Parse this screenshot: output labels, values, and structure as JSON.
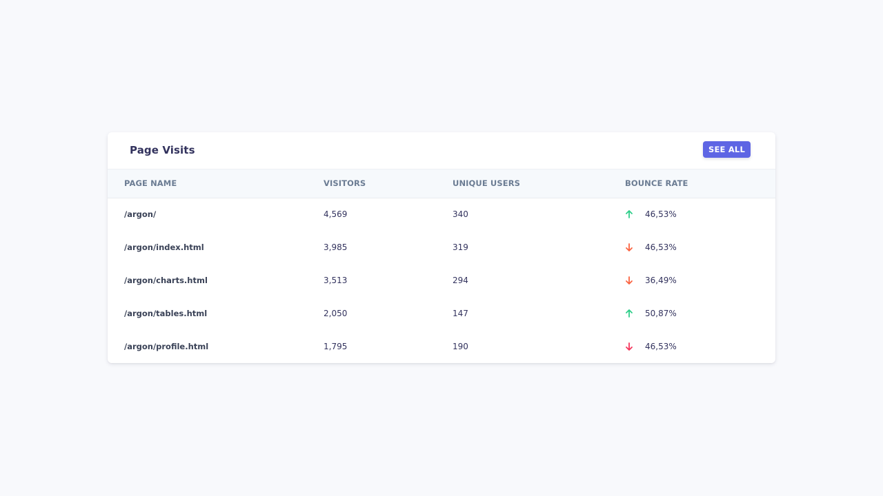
{
  "card": {
    "title": "Page Visits",
    "see_all_label": "SEE ALL"
  },
  "colors": {
    "accent": "#5e65e4",
    "up": "#2dce89",
    "down_orange": "#fb6340",
    "down_red": "#f5365c"
  },
  "table": {
    "headers": [
      "PAGE NAME",
      "VISITORS",
      "UNIQUE USERS",
      "BOUNCE RATE"
    ],
    "rows": [
      {
        "page": "/argon/",
        "visitors": "4,569",
        "unique": "340",
        "bounce": "46,53%",
        "trend": "up",
        "trend_icon": "arrow-up-icon"
      },
      {
        "page": "/argon/index.html",
        "visitors": "3,985",
        "unique": "319",
        "bounce": "46,53%",
        "trend": "down-orange",
        "trend_icon": "arrow-down-icon"
      },
      {
        "page": "/argon/charts.html",
        "visitors": "3,513",
        "unique": "294",
        "bounce": "36,49%",
        "trend": "down-orange",
        "trend_icon": "arrow-down-icon"
      },
      {
        "page": "/argon/tables.html",
        "visitors": "2,050",
        "unique": "147",
        "bounce": "50,87%",
        "trend": "up",
        "trend_icon": "arrow-up-icon"
      },
      {
        "page": "/argon/profile.html",
        "visitors": "1,795",
        "unique": "190",
        "bounce": "46,53%",
        "trend": "down-red",
        "trend_icon": "arrow-down-icon"
      }
    ]
  }
}
